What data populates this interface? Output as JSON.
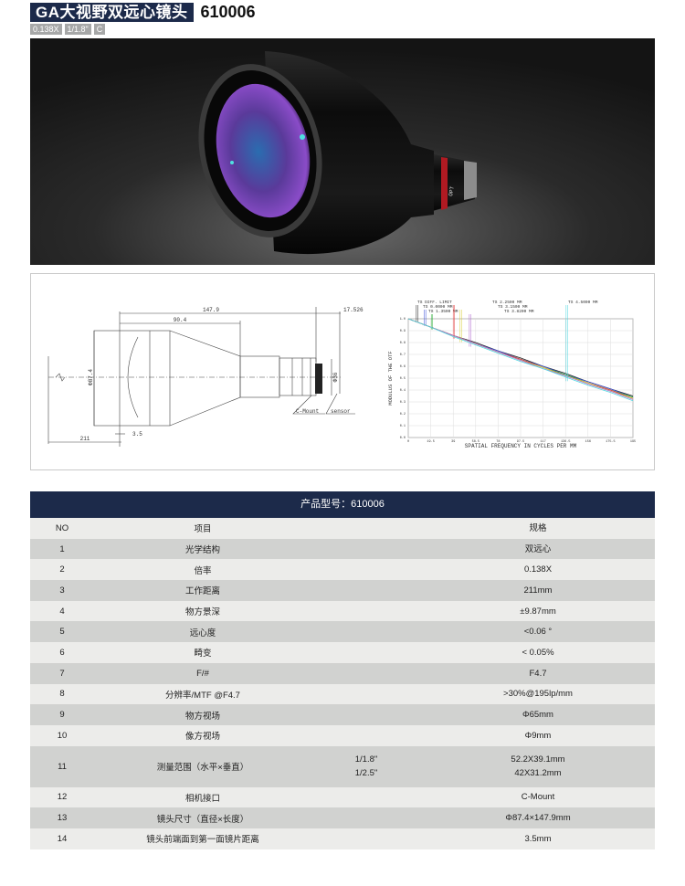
{
  "header": {
    "title": "GA大视野双远心镜头",
    "model": "610006",
    "tags": [
      "0.138X",
      "1/1.8\"",
      "C"
    ]
  },
  "photo": {
    "brand_text": "OPT"
  },
  "drawing": {
    "dimensions": {
      "total_length": "147.9",
      "cone_length": "90.4",
      "flange": "17.526",
      "diameter": "Φ87.4",
      "rear_diameter": "Φ36",
      "front_gap": "3.5",
      "working_distance": "211",
      "mount_label": "C-Mount",
      "sensor_label": "sensor"
    }
  },
  "mtf": {
    "ylabel": "MODULUS OF THE OTF",
    "xlabel": "SPATIAL FREQUENCY IN CYCLES PER MM",
    "x_ticks": [
      "0",
      "19.5",
      "39",
      "58.5",
      "78",
      "97.5",
      "117",
      "136.5",
      "156",
      "175.5",
      "195"
    ],
    "y_ticks": [
      "0.0",
      "0.1",
      "0.2",
      "0.3",
      "0.4",
      "0.5",
      "0.6",
      "0.7",
      "0.8",
      "0.9",
      "1.0"
    ],
    "x": [
      0,
      19.5,
      39,
      58.5,
      78,
      97.5,
      117,
      136.5,
      156,
      175.5,
      195
    ],
    "xlim": [
      0,
      195
    ],
    "ylim": [
      0,
      1
    ],
    "grid": true,
    "series": [
      {
        "name": "TS DIFF. LIMIT",
        "color": "#222222",
        "values": [
          1,
          0.93,
          0.86,
          0.8,
          0.73,
          0.67,
          0.6,
          0.54,
          0.47,
          0.41,
          0.35
        ]
      },
      {
        "name": "TS 0.0000 MM",
        "color": "#3a4fd8",
        "values": [
          1,
          0.93,
          0.86,
          0.79,
          0.73,
          0.66,
          0.6,
          0.53,
          0.47,
          0.41,
          0.34
        ]
      },
      {
        "name": "TS 1.3500 MM",
        "color": "#2fae3a",
        "values": [
          1,
          0.93,
          0.86,
          0.79,
          0.72,
          0.66,
          0.59,
          0.53,
          0.46,
          0.4,
          0.34
        ]
      },
      {
        "name": "TS 2.2500 MM",
        "color": "#e03b3b",
        "values": [
          1,
          0.93,
          0.86,
          0.79,
          0.72,
          0.66,
          0.59,
          0.52,
          0.46,
          0.4,
          0.33
        ]
      },
      {
        "name": "TS 3.1500 MM",
        "color": "#d8cf3a",
        "values": [
          1,
          0.93,
          0.86,
          0.79,
          0.72,
          0.65,
          0.59,
          0.52,
          0.46,
          0.39,
          0.33
        ]
      },
      {
        "name": "TS 3.8200 MM",
        "color": "#b06ad0",
        "values": [
          1,
          0.93,
          0.86,
          0.79,
          0.72,
          0.65,
          0.58,
          0.52,
          0.45,
          0.39,
          0.32
        ]
      },
      {
        "name": "TS 4.5000 MM",
        "color": "#4fd6e0",
        "values": [
          1,
          0.93,
          0.85,
          0.78,
          0.71,
          0.64,
          0.58,
          0.51,
          0.44,
          0.38,
          0.31
        ]
      }
    ]
  },
  "table": {
    "title": "产品型号：610006",
    "columns": [
      "NO",
      "项目",
      "",
      "规格"
    ],
    "rows": [
      {
        "no": "1",
        "item": "光学结构",
        "sub": "",
        "value": "双远心"
      },
      {
        "no": "2",
        "item": "倍率",
        "sub": "",
        "value": "0.138X"
      },
      {
        "no": "3",
        "item": "工作距离",
        "sub": "",
        "value": "211mm"
      },
      {
        "no": "4",
        "item": "物方景深",
        "sub": "",
        "value": "±9.87mm"
      },
      {
        "no": "5",
        "item": "远心度",
        "sub": "",
        "value": "<0.06 °"
      },
      {
        "no": "6",
        "item": "畸变",
        "sub": "",
        "value": "< 0.05%"
      },
      {
        "no": "7",
        "item": "F/#",
        "sub": "",
        "value": "F4.7"
      },
      {
        "no": "8",
        "item": "分辨率/MTF @F4.7",
        "sub": "",
        "value": ">30%@195lp/mm"
      },
      {
        "no": "9",
        "item": "物方视场",
        "sub": "",
        "value": "Φ65mm"
      },
      {
        "no": "10",
        "item": "像方视场",
        "sub": "",
        "value": "Φ9mm"
      },
      {
        "no": "11",
        "item": "测量范围（水平×垂直）",
        "sub": "1/1.8\"",
        "sub2": "1/2.5\"",
        "value": "52.2X39.1mm",
        "value2": "42X31.2mm"
      },
      {
        "no": "12",
        "item": "相机接口",
        "sub": "",
        "value": "C-Mount"
      },
      {
        "no": "13",
        "item": "镜头尺寸（直径×长度）",
        "sub": "",
        "value": "Φ87.4×147.9mm"
      },
      {
        "no": "14",
        "item": "镜头前端面到第一面镜片距离",
        "sub": "",
        "value": "3.5mm"
      }
    ]
  }
}
